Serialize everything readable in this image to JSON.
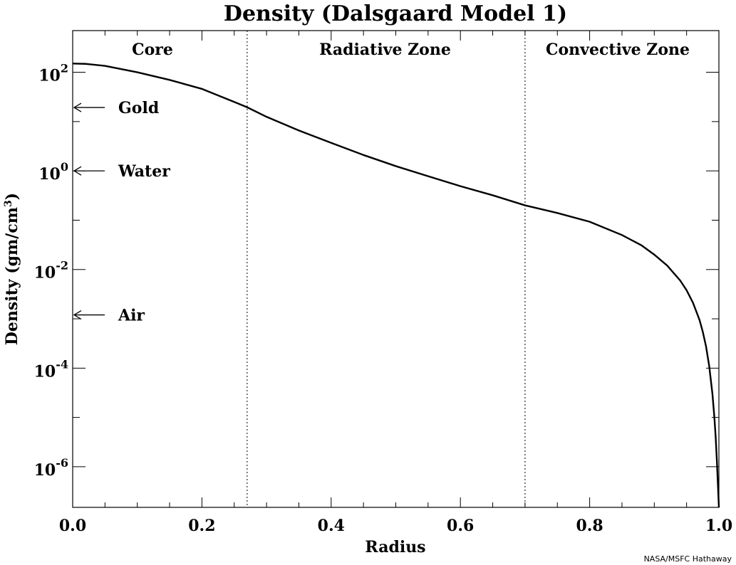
{
  "chart_data": {
    "type": "line",
    "title": "Density (Dalsgaard Model 1)",
    "xlabel": "Radius",
    "ylabel": "Density (gm/cm³)",
    "ylabel_main": "Density (gm/cm",
    "ylabel_sup": "3",
    "ylabel_close": ")",
    "yscale": "log",
    "xlim": [
      0.0,
      1.0
    ],
    "ylim": [
      1.5e-07,
      700
    ],
    "xticks": [
      {
        "value": 0.0,
        "label": "0.0"
      },
      {
        "value": 0.2,
        "label": "0.2"
      },
      {
        "value": 0.4,
        "label": "0.4"
      },
      {
        "value": 0.6,
        "label": "0.6"
      },
      {
        "value": 0.8,
        "label": "0.8"
      },
      {
        "value": 1.0,
        "label": "1.0"
      }
    ],
    "yticks": [
      {
        "value": 100,
        "base": "10",
        "exp": "2"
      },
      {
        "value": 1,
        "base": "10",
        "exp": "0"
      },
      {
        "value": 0.01,
        "base": "10",
        "exp": "-2"
      },
      {
        "value": 0.0001,
        "base": "10",
        "exp": "-4"
      },
      {
        "value": 1e-06,
        "base": "10",
        "exp": "-6"
      }
    ],
    "zone_boundaries": [
      0.27,
      0.7
    ],
    "zones": [
      {
        "label": "Core",
        "center": 0.14
      },
      {
        "label": "Radiative Zone",
        "center": 0.5
      },
      {
        "label": "Convective Zone",
        "center": 0.86
      }
    ],
    "reference_levels": [
      {
        "label": "Gold",
        "value": 19.3
      },
      {
        "label": "Water",
        "value": 1.0
      },
      {
        "label": "Air",
        "value": 0.0012
      }
    ],
    "series": [
      {
        "values_x": [
          0.0,
          0.02,
          0.05,
          0.1,
          0.15,
          0.2,
          0.25,
          0.27,
          0.3,
          0.35,
          0.4,
          0.45,
          0.5,
          0.55,
          0.6,
          0.65,
          0.7,
          0.75,
          0.8,
          0.85,
          0.88,
          0.9,
          0.92,
          0.94,
          0.95,
          0.96,
          0.97,
          0.975,
          0.98,
          0.985,
          0.99,
          0.993,
          0.995,
          0.997,
          0.998,
          0.999,
          1.0
        ],
        "values_y": [
          150,
          148,
          135,
          100,
          70,
          46,
          25,
          19.5,
          12.5,
          6.6,
          3.7,
          2.1,
          1.25,
          0.78,
          0.49,
          0.32,
          0.2,
          0.14,
          0.093,
          0.05,
          0.031,
          0.02,
          0.012,
          0.006,
          0.0038,
          0.0021,
          0.00095,
          0.00055,
          0.00028,
          0.00011,
          3e-05,
          1e-05,
          4e-06,
          1.2e-06,
          6e-07,
          3e-07,
          1.5e-07
        ]
      }
    ]
  },
  "footer": {
    "credit": "NASA/MSFC Hathaway"
  }
}
